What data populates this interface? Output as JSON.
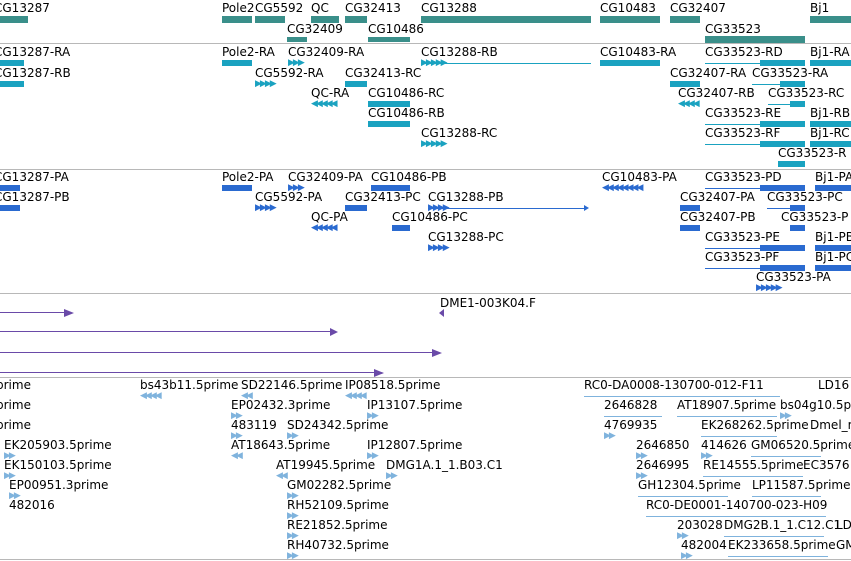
{
  "colors": {
    "gene": "#3a8f8a",
    "transcript": "#1aa2c0",
    "protein": "#2a6ad0",
    "clone": "#6a4aa8",
    "est": "#7fb3dd",
    "separator": "#b8b8b8"
  },
  "tracks": {
    "genes": [
      {
        "label": "CG13287"
      },
      {
        "label": "Pole2"
      },
      {
        "label": "CG5592"
      },
      {
        "label": "QC"
      },
      {
        "label": "CG32409"
      },
      {
        "label": "CG32413"
      },
      {
        "label": "CG10486"
      },
      {
        "label": "CG13288"
      },
      {
        "label": "CG10483"
      },
      {
        "label": "CG32407"
      },
      {
        "label": "CG33523"
      },
      {
        "label": "Bj1"
      }
    ],
    "transcripts": [
      {
        "label": "CG13287-RA"
      },
      {
        "label": "CG13287-RB"
      },
      {
        "label": "Pole2-RA"
      },
      {
        "label": "CG32409-RA"
      },
      {
        "label": "CG13288-RB"
      },
      {
        "label": "CG10483-RA"
      },
      {
        "label": "CG33523-RD"
      },
      {
        "label": "Bj1-RA"
      },
      {
        "label": "CG5592-RA"
      },
      {
        "label": "CG32413-RC"
      },
      {
        "label": "CG32407-RA"
      },
      {
        "label": "CG33523-RA"
      },
      {
        "label": "QC-RA"
      },
      {
        "label": "CG10486-RC"
      },
      {
        "label": "CG32407-RB"
      },
      {
        "label": "CG33523-RC"
      },
      {
        "label": "CG10486-RB"
      },
      {
        "label": "CG33523-RE"
      },
      {
        "label": "Bj1-RB"
      },
      {
        "label": "CG13288-RC"
      },
      {
        "label": "CG33523-RF"
      },
      {
        "label": "Bj1-RC"
      },
      {
        "label": "CG33523-R"
      }
    ],
    "proteins": [
      {
        "label": "CG13287-PA"
      },
      {
        "label": "Pole2-PA"
      },
      {
        "label": "CG32409-PA"
      },
      {
        "label": "CG10486-PB"
      },
      {
        "label": "CG10483-PA"
      },
      {
        "label": "CG33523-PD"
      },
      {
        "label": "Bj1-PA"
      },
      {
        "label": "CG13287-PB"
      },
      {
        "label": "CG5592-PA"
      },
      {
        "label": "CG32413-PC"
      },
      {
        "label": "CG13288-PB"
      },
      {
        "label": "CG32407-PA"
      },
      {
        "label": "CG33523-PC"
      },
      {
        "label": "QC-PA"
      },
      {
        "label": "CG10486-PC"
      },
      {
        "label": "CG32407-PB"
      },
      {
        "label": "CG33523-P"
      },
      {
        "label": "CG13288-PC"
      },
      {
        "label": "CG33523-PE"
      },
      {
        "label": "Bj1-PB"
      },
      {
        "label": "CG33523-PF"
      },
      {
        "label": "Bj1-PC"
      },
      {
        "label": "CG33523-PA"
      }
    ],
    "clones": [
      {
        "label": "DME1-003K04.F"
      }
    ],
    "ests": [
      {
        "label": "prime"
      },
      {
        "label": "bs43b11.5prime"
      },
      {
        "label": "SD22146.5prime"
      },
      {
        "label": "IP08518.5prime"
      },
      {
        "label": "RC0-DA0008-130700-012-F11"
      },
      {
        "label": "LD16"
      },
      {
        "label": "prime"
      },
      {
        "label": "EP02432.3prime"
      },
      {
        "label": "IP13107.5prime"
      },
      {
        "label": "2646828"
      },
      {
        "label": "AT18907.5prime"
      },
      {
        "label": "bs04g10.5p"
      },
      {
        "label": "prime"
      },
      {
        "label": "483119"
      },
      {
        "label": "SD24342.5prime"
      },
      {
        "label": "4769935"
      },
      {
        "label": "EK268262.5prime"
      },
      {
        "label": "Dmel_m"
      },
      {
        "label": "EK205903.5prime"
      },
      {
        "label": "AT18643.5prime"
      },
      {
        "label": "IP12807.5prime"
      },
      {
        "label": "2646850"
      },
      {
        "label": "414626"
      },
      {
        "label": "GM06520.5prime"
      },
      {
        "label": "EK150103.5prime"
      },
      {
        "label": "AT19945.5prime"
      },
      {
        "label": "DMG1A.1_1.B03.C1"
      },
      {
        "label": "2646995"
      },
      {
        "label": "RE14555.5prime"
      },
      {
        "label": "EC3576"
      },
      {
        "label": "EP00951.3prime"
      },
      {
        "label": "GM02282.5prime"
      },
      {
        "label": "GH12304.5prime"
      },
      {
        "label": "LP11587.5prime"
      },
      {
        "label": "482016"
      },
      {
        "label": "RH52109.5prime"
      },
      {
        "label": "RC0-DE0001-140700-023-H09"
      },
      {
        "label": "RE21852.5prime"
      },
      {
        "label": "203028"
      },
      {
        "label": "DMG2B.1_1.C12.C1"
      },
      {
        "label": "LD"
      },
      {
        "label": "RH40732.5prime"
      },
      {
        "label": "482004"
      },
      {
        "label": "EK233658.5prime"
      },
      {
        "label": "GM"
      }
    ]
  }
}
